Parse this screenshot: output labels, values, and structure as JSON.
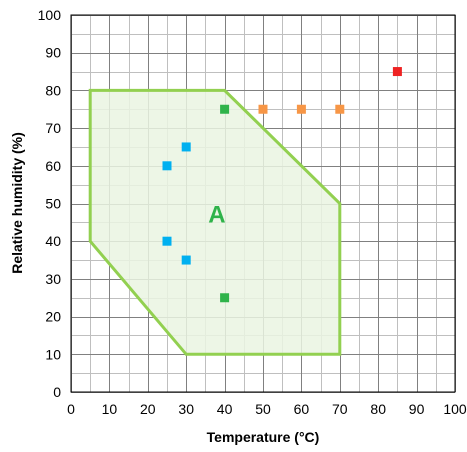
{
  "chart_data": {
    "type": "scatter",
    "title": "",
    "xlabel": "Temperature (°C)",
    "ylabel": "Relative humidity (%)",
    "xlim": [
      0,
      100
    ],
    "ylim": [
      0,
      100
    ],
    "xticks": [
      0,
      10,
      20,
      30,
      40,
      50,
      60,
      70,
      80,
      90,
      100
    ],
    "yticks": [
      0,
      10,
      20,
      30,
      40,
      50,
      60,
      70,
      80,
      90,
      100
    ],
    "grid": {
      "major_step": 10,
      "minor_step": 5
    },
    "region": {
      "label": "A",
      "points": [
        [
          5,
          80
        ],
        [
          40,
          80
        ],
        [
          70,
          50
        ],
        [
          70,
          10
        ],
        [
          30,
          10
        ],
        [
          5,
          40
        ]
      ],
      "fill": "#eaf4e2",
      "stroke": "#92d050",
      "label_color": "#2fb34a",
      "label_at": [
        38,
        45
      ]
    },
    "series": [
      {
        "color": "#00b0f0",
        "points": [
          [
            25,
            60
          ],
          [
            30,
            65
          ],
          [
            25,
            40
          ],
          [
            30,
            35
          ]
        ]
      },
      {
        "color": "#2fb34a",
        "points": [
          [
            40,
            75
          ],
          [
            40,
            25
          ]
        ]
      },
      {
        "color": "#f79646",
        "points": [
          [
            50,
            75
          ],
          [
            60,
            75
          ],
          [
            70,
            75
          ]
        ]
      },
      {
        "color": "#ee2222",
        "points": [
          [
            85,
            85
          ]
        ]
      }
    ]
  }
}
